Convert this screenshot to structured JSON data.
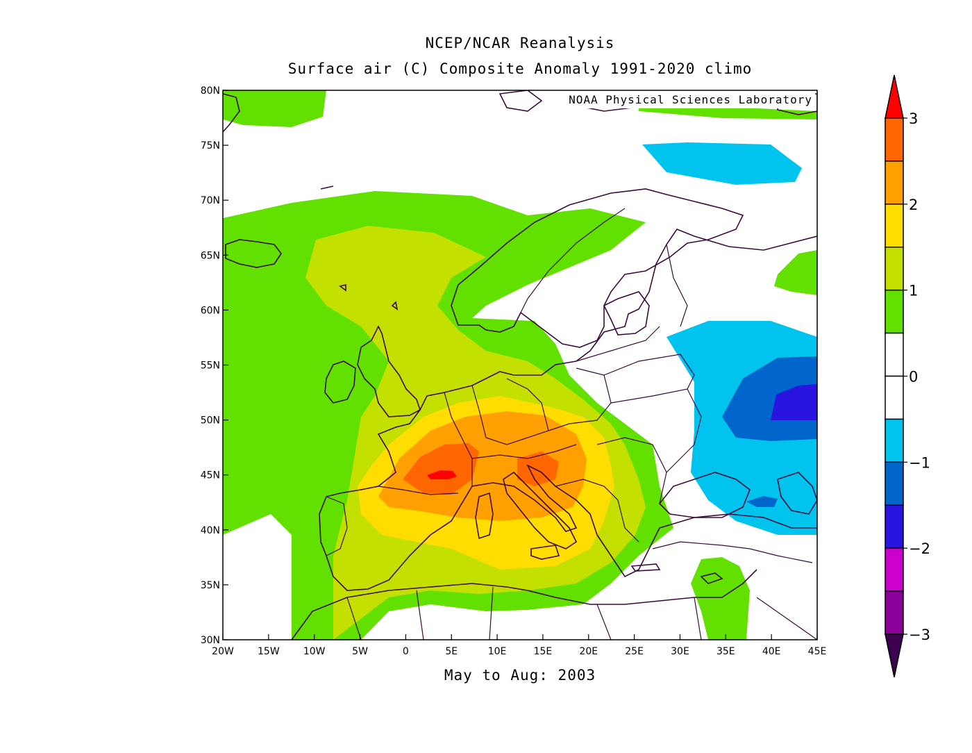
{
  "header": {
    "title": "NCEP/NCAR Reanalysis",
    "subtitle": "Surface air (C) Composite Anomaly 1991-2020 climo"
  },
  "credit": "NOAA Physical Sciences Laboratory",
  "period_label": "May to Aug: 2003",
  "map": {
    "region": "Europe",
    "lon_range": [
      -20,
      45
    ],
    "lat_range": [
      30,
      80
    ],
    "lon_ticks": [
      "20W",
      "15W",
      "10W",
      "5W",
      "0",
      "5E",
      "10E",
      "15E",
      "20E",
      "25E",
      "30E",
      "35E",
      "40E",
      "45E"
    ],
    "lat_ticks": [
      "30N",
      "35N",
      "40N",
      "45N",
      "50N",
      "55N",
      "60N",
      "65N",
      "70N",
      "75N",
      "80N"
    ]
  },
  "colorbar": {
    "labels": [
      "3",
      "2",
      "1",
      "0",
      "−1",
      "−2",
      "−3"
    ],
    "levels": [
      3,
      2.5,
      2,
      1.5,
      1,
      0.5,
      0,
      -0.5,
      -1,
      -1.5,
      -2,
      -2.5,
      -3
    ],
    "colors": [
      "#ff0000",
      "#ff6600",
      "#ffa000",
      "#ffdd00",
      "#c4e000",
      "#62e000",
      "#ffffff",
      "#ffffff",
      "#00c3ee",
      "#0066cc",
      "#2a15e0",
      "#cc00cc",
      "#8b0099",
      "#3d0050"
    ],
    "edge_colors": {
      "top": "#ff0000",
      "bottom": "#3d0050"
    }
  },
  "colors": {
    "coast": "#3a0a3a",
    "green": "#62e000",
    "yellow_green": "#c4e000",
    "yellow": "#ffdd00",
    "orange": "#ffa000",
    "dark_orange": "#ff6600",
    "red": "#ff0000",
    "light_blue": "#00c3ee",
    "blue": "#0066cc",
    "indigo": "#2a15e0"
  }
}
